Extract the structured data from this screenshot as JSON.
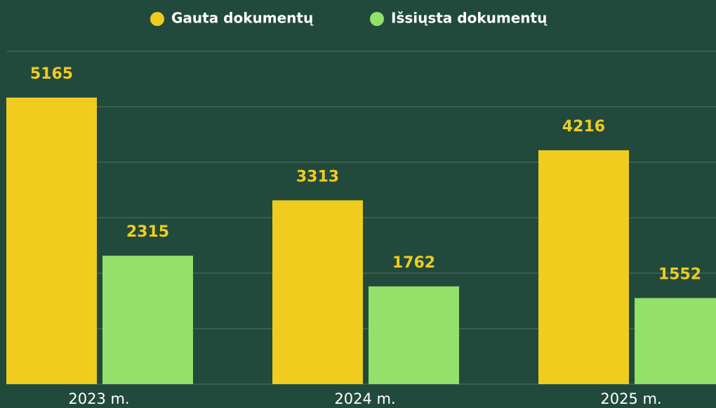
{
  "chart_data": {
    "type": "bar",
    "categories": [
      "2023 m.",
      "2024 m.",
      "2025 m."
    ],
    "series": [
      {
        "name": "Gauta dokumentų",
        "color": "#f0cc1f",
        "values": [
          5165,
          3313,
          4216
        ]
      },
      {
        "name": "Išsiųsta dokumentų",
        "color": "#93e06a",
        "values": [
          2315,
          1762,
          1552
        ]
      }
    ],
    "ylim": [
      0,
      6000
    ],
    "yticks": [
      0,
      1000,
      2000,
      3000,
      4000,
      5000,
      6000
    ],
    "grid": true,
    "legend": "top"
  }
}
